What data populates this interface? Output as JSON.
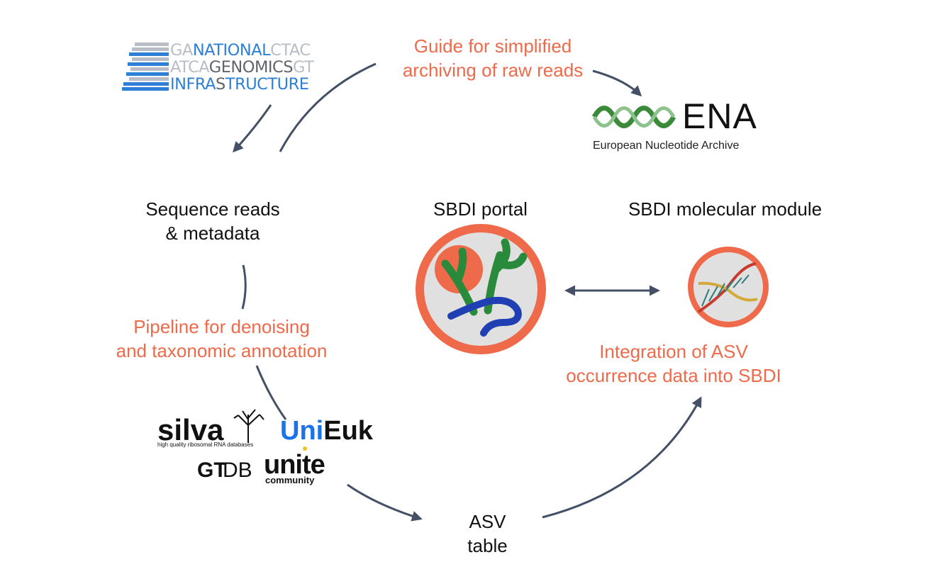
{
  "labels": {
    "guide": "Guide for simplified\narchiving of raw reads",
    "sequence_reads": "Sequence reads\n& metadata",
    "sbdi_portal": "SBDI portal",
    "sbdi_molecular": "SBDI molecular module",
    "pipeline": "Pipeline for denoising\nand taxonomic annotation",
    "integration": "Integration of ASV\noccurrence data into SBDI",
    "asv_table": "ASV\ntable"
  },
  "logos": {
    "ngi": {
      "line1": [
        "GA",
        "NATIONAL",
        "CTAC"
      ],
      "line2": [
        "ATCA",
        "GENOMICS",
        "GT"
      ],
      "line3": [
        "INFRA",
        "S",
        "TRUCTURE"
      ]
    },
    "ena": {
      "name": "ENA",
      "subtitle": "European Nucleotide Archive"
    },
    "silva": {
      "name": "silva",
      "subtitle": "high quality ribosomal RNA databases"
    },
    "unieuk": {
      "part1": "Uni",
      "part2": "Euk"
    },
    "gtdb": {
      "part1": "GT",
      "part2": "DB"
    },
    "unite": {
      "name": "unite",
      "subtitle": "community"
    }
  },
  "colors": {
    "accent_orange": "#ee6a4a",
    "arrow": "#435066",
    "ngi_blue": "#2e7fd6",
    "ena_green": "#3a8a3a",
    "unieuk_blue": "#1a73e8",
    "unite_yellow": "#f2c21b"
  }
}
